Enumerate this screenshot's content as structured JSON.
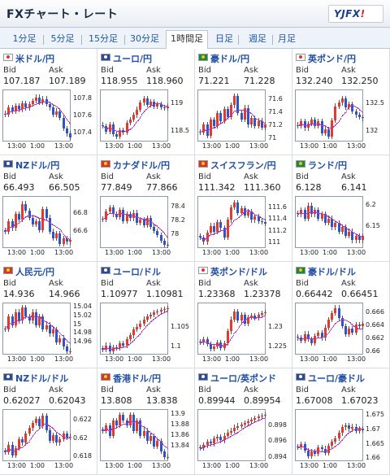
{
  "app": {
    "title": "FXチャート・レート",
    "logo_text": "YJFX!",
    "logo_accent": "#d22"
  },
  "tabs": [
    {
      "label": "1分足",
      "active": false
    },
    {
      "label": "5分足",
      "active": false
    },
    {
      "label": "15分足",
      "active": false
    },
    {
      "label": "30分足",
      "active": false
    },
    {
      "label": "1時間足",
      "active": true
    },
    {
      "label": "日足",
      "active": false
    },
    {
      "label": "週足",
      "active": false
    },
    {
      "label": "月足",
      "active": false
    }
  ],
  "colors": {
    "up": "#e33a2a",
    "down": "#2f54c9",
    "ma": "#c229c9",
    "link": "#1f4fa6"
  },
  "labels": {
    "bid": "Bid",
    "ask": "Ask"
  },
  "panels": [
    {
      "name": "米ドル/円",
      "flag": "white",
      "bid": "107.187",
      "ask": "107.189",
      "yticks": [
        "107.8",
        "107.6",
        "107.4"
      ],
      "xticks": [
        "13:00",
        "1:00",
        "13:00"
      ],
      "prices": [
        107.62,
        107.7,
        107.66,
        107.72,
        107.68,
        107.75,
        107.7,
        107.74,
        107.78,
        107.82,
        107.76,
        107.8,
        107.74,
        107.7,
        107.62,
        107.66,
        107.58,
        107.46,
        107.4,
        107.36
      ],
      "ylim": [
        107.3,
        107.9
      ]
    },
    {
      "name": "ユーロ/円",
      "flag": "blue",
      "bid": "118.955",
      "ask": "118.960",
      "yticks": [
        "119",
        "118.5"
      ],
      "xticks": [
        "13:00",
        "1:00",
        "13:00"
      ],
      "prices": [
        118.6,
        118.5,
        118.62,
        118.45,
        118.4,
        118.52,
        118.48,
        118.66,
        118.72,
        118.8,
        118.9,
        119.02,
        119.1,
        118.98,
        119.04,
        118.96,
        119.0,
        118.94,
        118.92,
        118.96
      ],
      "ylim": [
        118.3,
        119.25
      ]
    },
    {
      "name": "豪ドル/円",
      "flag": "green",
      "bid": "71.221",
      "ask": "71.228",
      "yticks": [
        "71.6",
        "71.4",
        "71.2",
        "71"
      ],
      "xticks": [
        "13:00",
        "1:00",
        "13:00"
      ],
      "prices": [
        71.1,
        71.22,
        71.05,
        71.3,
        71.2,
        71.4,
        71.28,
        71.46,
        71.34,
        71.52,
        71.66,
        71.4,
        71.3,
        71.48,
        71.22,
        71.32,
        71.2,
        71.28,
        71.18,
        71.22
      ],
      "ylim": [
        70.95,
        71.75
      ]
    },
    {
      "name": "英ポンド/円",
      "flag": "white",
      "bid": "132.240",
      "ask": "132.250",
      "yticks": [
        "132.5",
        "132"
      ],
      "xticks": [
        "13:00",
        "1:00",
        "13:00"
      ],
      "prices": [
        132.1,
        132.18,
        132.06,
        132.14,
        132.22,
        132.1,
        132.18,
        131.96,
        132.04,
        131.9,
        132.2,
        132.46,
        132.52,
        132.6,
        132.44,
        132.5,
        132.36,
        132.3,
        132.26,
        132.24
      ],
      "ylim": [
        131.8,
        132.75
      ]
    },
    {
      "name": "NZドル/円",
      "flag": "blue",
      "bid": "66.493",
      "ask": "66.505",
      "yticks": [
        "66.8",
        "66.6"
      ],
      "xticks": [
        "13:00",
        "1:00",
        "13:00"
      ],
      "prices": [
        66.6,
        66.72,
        66.64,
        66.8,
        66.74,
        66.92,
        66.84,
        66.76,
        66.68,
        66.72,
        66.62,
        66.86,
        66.76,
        66.6,
        66.52,
        66.58,
        66.46,
        66.52,
        66.48,
        66.5
      ],
      "ylim": [
        66.4,
        67.0
      ]
    },
    {
      "name": "カナダドル/円",
      "flag": "red",
      "bid": "77.849",
      "ask": "77.866",
      "yticks": [
        "78.4",
        "78.2",
        "78"
      ],
      "xticks": [
        "13:00",
        "1:00",
        "13:00"
      ],
      "prices": [
        78.22,
        78.34,
        78.4,
        78.3,
        78.26,
        78.36,
        78.2,
        78.3,
        78.24,
        78.32,
        78.18,
        78.22,
        78.14,
        78.24,
        78.12,
        78.06,
        78.0,
        77.92,
        77.86,
        77.85
      ],
      "ylim": [
        77.8,
        78.55
      ]
    },
    {
      "name": "スイスフラン/円",
      "flag": "red",
      "bid": "111.342",
      "ask": "111.360",
      "yticks": [
        "111.6",
        "111.4",
        "111.2",
        "111"
      ],
      "xticks": [
        "13:00",
        "1:00",
        "13:00"
      ],
      "prices": [
        111.1,
        111.02,
        111.18,
        111.3,
        111.2,
        111.36,
        111.26,
        111.1,
        111.4,
        111.62,
        111.7,
        111.52,
        111.6,
        111.48,
        111.54,
        111.4,
        111.46,
        111.38,
        111.36,
        111.34
      ],
      "ylim": [
        110.9,
        111.8
      ]
    },
    {
      "name": "ランド/円",
      "flag": "green",
      "bid": "6.128",
      "ask": "6.141",
      "yticks": [
        "6.2",
        "6.15"
      ],
      "xticks": [
        "13:00",
        "1:00",
        "13:00"
      ],
      "prices": [
        6.18,
        6.19,
        6.17,
        6.2,
        6.18,
        6.19,
        6.17,
        6.18,
        6.16,
        6.17,
        6.15,
        6.16,
        6.14,
        6.15,
        6.13,
        6.14,
        6.12,
        6.13,
        6.12,
        6.13
      ],
      "ylim": [
        6.1,
        6.22
      ]
    },
    {
      "name": "人民元/円",
      "flag": "red",
      "bid": "14.936",
      "ask": "14.966",
      "yticks": [
        "15.04",
        "15.02",
        "15",
        "14.98",
        "14.96"
      ],
      "xticks": [
        "13:00",
        "1:00",
        "13:00"
      ],
      "prices": [
        14.99,
        15.02,
        15.0,
        15.03,
        15.01,
        15.04,
        15.02,
        15.01,
        15.03,
        15.0,
        15.02,
        14.99,
        15.0,
        14.98,
        14.99,
        14.96,
        14.97,
        14.95,
        14.94,
        14.94
      ],
      "ylim": [
        14.93,
        15.05
      ]
    },
    {
      "name": "ユーロ/ドル",
      "flag": "blue",
      "bid": "1.10977",
      "ask": "1.10981",
      "yticks": [
        "1.105",
        "1.1"
      ],
      "xticks": [
        "13:00",
        "1:00",
        "13:00"
      ],
      "prices": [
        1.0995,
        1.1005,
        1.099,
        1.1,
        1.0998,
        1.101,
        1.1004,
        1.102,
        1.103,
        1.1045,
        1.1052,
        1.106,
        1.107,
        1.1078,
        1.1082,
        1.1088,
        1.109,
        1.1094,
        1.1096,
        1.1098
      ],
      "ylim": [
        1.098,
        1.111
      ]
    },
    {
      "name": "英ポンド/ドル",
      "flag": "white",
      "bid": "1.23368",
      "ask": "1.23378",
      "yticks": [
        "1.23",
        "1.225"
      ],
      "xticks": [
        "13:00",
        "1:00",
        "13:00"
      ],
      "prices": [
        1.2262,
        1.227,
        1.2258,
        1.2246,
        1.2252,
        1.2262,
        1.2248,
        1.226,
        1.229,
        1.232,
        1.234,
        1.2318,
        1.2332,
        1.231,
        1.2326,
        1.233,
        1.2324,
        1.2332,
        1.2336,
        1.2337
      ],
      "ylim": [
        1.223,
        1.236
      ]
    },
    {
      "name": "豪ドル/ドル",
      "flag": "green",
      "bid": "0.66442",
      "ask": "0.66451",
      "yticks": [
        "0.666",
        "0.664",
        "0.662",
        "0.66"
      ],
      "xticks": [
        "13:00",
        "1:00",
        "13:00"
      ],
      "prices": [
        0.6622,
        0.6618,
        0.6628,
        0.662,
        0.6614,
        0.6625,
        0.663,
        0.6622,
        0.6638,
        0.665,
        0.666,
        0.6668,
        0.6652,
        0.664,
        0.6628,
        0.6636,
        0.663,
        0.6642,
        0.664,
        0.6644
      ],
      "ylim": [
        0.6595,
        0.6675
      ]
    },
    {
      "name": "NZドル/ドル",
      "flag": "blue",
      "bid": "0.62027",
      "ask": "0.62043",
      "yticks": [
        "0.622",
        "0.62",
        "0.618"
      ],
      "xticks": [
        "13:00",
        "1:00",
        "13:00"
      ],
      "prices": [
        0.6186,
        0.6194,
        0.6182,
        0.619,
        0.62,
        0.6196,
        0.6206,
        0.6212,
        0.6218,
        0.6222,
        0.6214,
        0.6226,
        0.621,
        0.6198,
        0.6204,
        0.6196,
        0.62,
        0.6206,
        0.6202,
        0.6203
      ],
      "ylim": [
        0.6175,
        0.6232
      ]
    },
    {
      "name": "香港ドル/円",
      "flag": "red",
      "bid": "13.808",
      "ask": "13.838",
      "yticks": [
        "13.9",
        "13.88",
        "13.86",
        "13.84"
      ],
      "xticks": [
        "13:00",
        "1:00",
        "13:00"
      ],
      "prices": [
        13.87,
        13.88,
        13.86,
        13.89,
        13.88,
        13.9,
        13.89,
        13.88,
        13.9,
        13.87,
        13.89,
        13.86,
        13.87,
        13.85,
        13.86,
        13.84,
        13.85,
        13.83,
        13.82,
        13.82
      ],
      "ylim": [
        13.81,
        13.91
      ]
    },
    {
      "name": "ユーロ/英ポンド",
      "flag": "blue",
      "bid": "0.89944",
      "ask": "0.89954",
      "yticks": [
        "0.898",
        "0.896",
        "0.894"
      ],
      "xticks": [
        "13:00",
        "1:00",
        "13:00"
      ],
      "prices": [
        0.8952,
        0.8956,
        0.896,
        0.8958,
        0.8964,
        0.8966,
        0.8962,
        0.8968,
        0.8972,
        0.8974,
        0.8978,
        0.898,
        0.8982,
        0.8984,
        0.8986,
        0.8988,
        0.899,
        0.8992,
        0.8993,
        0.8994
      ],
      "ylim": [
        0.8935,
        0.9
      ]
    },
    {
      "name": "ユーロ/豪ドル",
      "flag": "blue",
      "bid": "1.67008",
      "ask": "1.67023",
      "yticks": [
        "1.675",
        "1.67",
        "1.665",
        "1.66"
      ],
      "xticks": [
        "13:00",
        "1:00",
        "13:00"
      ],
      "prices": [
        1.664,
        1.6652,
        1.663,
        1.661,
        1.6626,
        1.6618,
        1.664,
        1.6636,
        1.6622,
        1.6646,
        1.666,
        1.6672,
        1.669,
        1.671,
        1.6716,
        1.6704,
        1.6712,
        1.6698,
        1.6704,
        1.6701
      ],
      "ylim": [
        1.659,
        1.677
      ]
    }
  ]
}
